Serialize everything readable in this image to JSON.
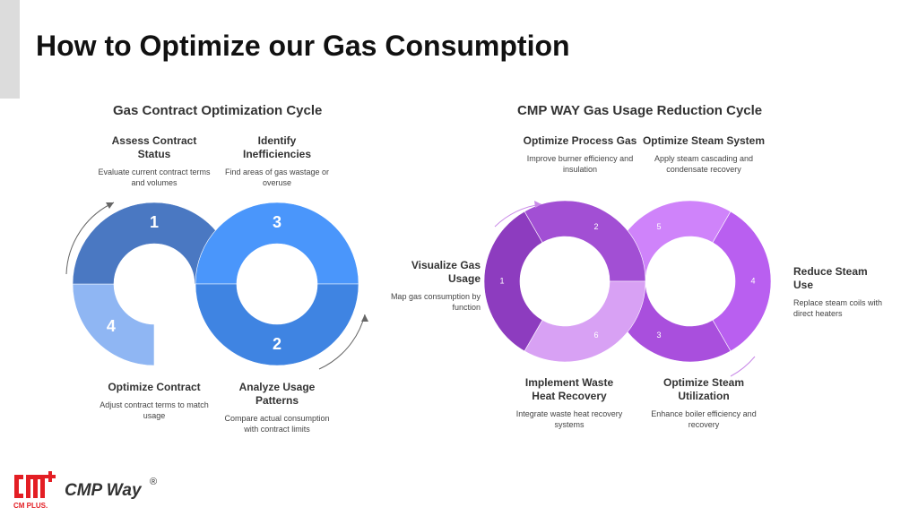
{
  "page": {
    "title": "How to Optimize our Gas Consumption"
  },
  "left": {
    "title": "Gas Contract Optimization Cycle",
    "steps": [
      {
        "num": "1",
        "heading": "Assess Contract Status",
        "desc": "Evaluate current contract terms and volumes",
        "color": "#4a78c2"
      },
      {
        "num": "2",
        "heading": "Analyze Usage Patterns",
        "desc": "Compare actual consumption with contract limits",
        "color": "#3f84e2"
      },
      {
        "num": "3",
        "heading": "Identify Inefficiencies",
        "desc": "Find areas of gas wastage or overuse",
        "color": "#4a96fb"
      },
      {
        "num": "4",
        "heading": "Optimize Contract",
        "desc": "Adjust contract terms to match usage",
        "color": "#8fb6f3"
      }
    ]
  },
  "right": {
    "title": "CMP WAY Gas Usage Reduction Cycle",
    "steps": [
      {
        "num": "1",
        "heading": "Visualize Gas Usage",
        "desc": "Map gas consumption by function",
        "color": "#8d3cbf"
      },
      {
        "num": "2",
        "heading": "Optimize Process Gas",
        "desc": "Improve burner efficiency and insulation",
        "color": "#a24fd4"
      },
      {
        "num": "3",
        "heading": "Optimize Steam Utilization",
        "desc": "Enhance boiler efficiency and recovery",
        "color": "#a94fdd"
      },
      {
        "num": "4",
        "heading": "Reduce Steam Use",
        "desc": "Replace steam coils with direct heaters",
        "color": "#b95ff0"
      },
      {
        "num": "5",
        "heading": "Optimize Steam System",
        "desc": "Apply steam cascading and condensate recovery",
        "color": "#cf83fa"
      },
      {
        "num": "6",
        "heading": "Implement Waste Heat Recovery",
        "desc": "Integrate waste heat recovery systems",
        "color": "#d8a1f4"
      }
    ]
  },
  "footer": {
    "logo_text": "CM PLUS.",
    "brand": "CMP Way",
    "reg": "®"
  }
}
